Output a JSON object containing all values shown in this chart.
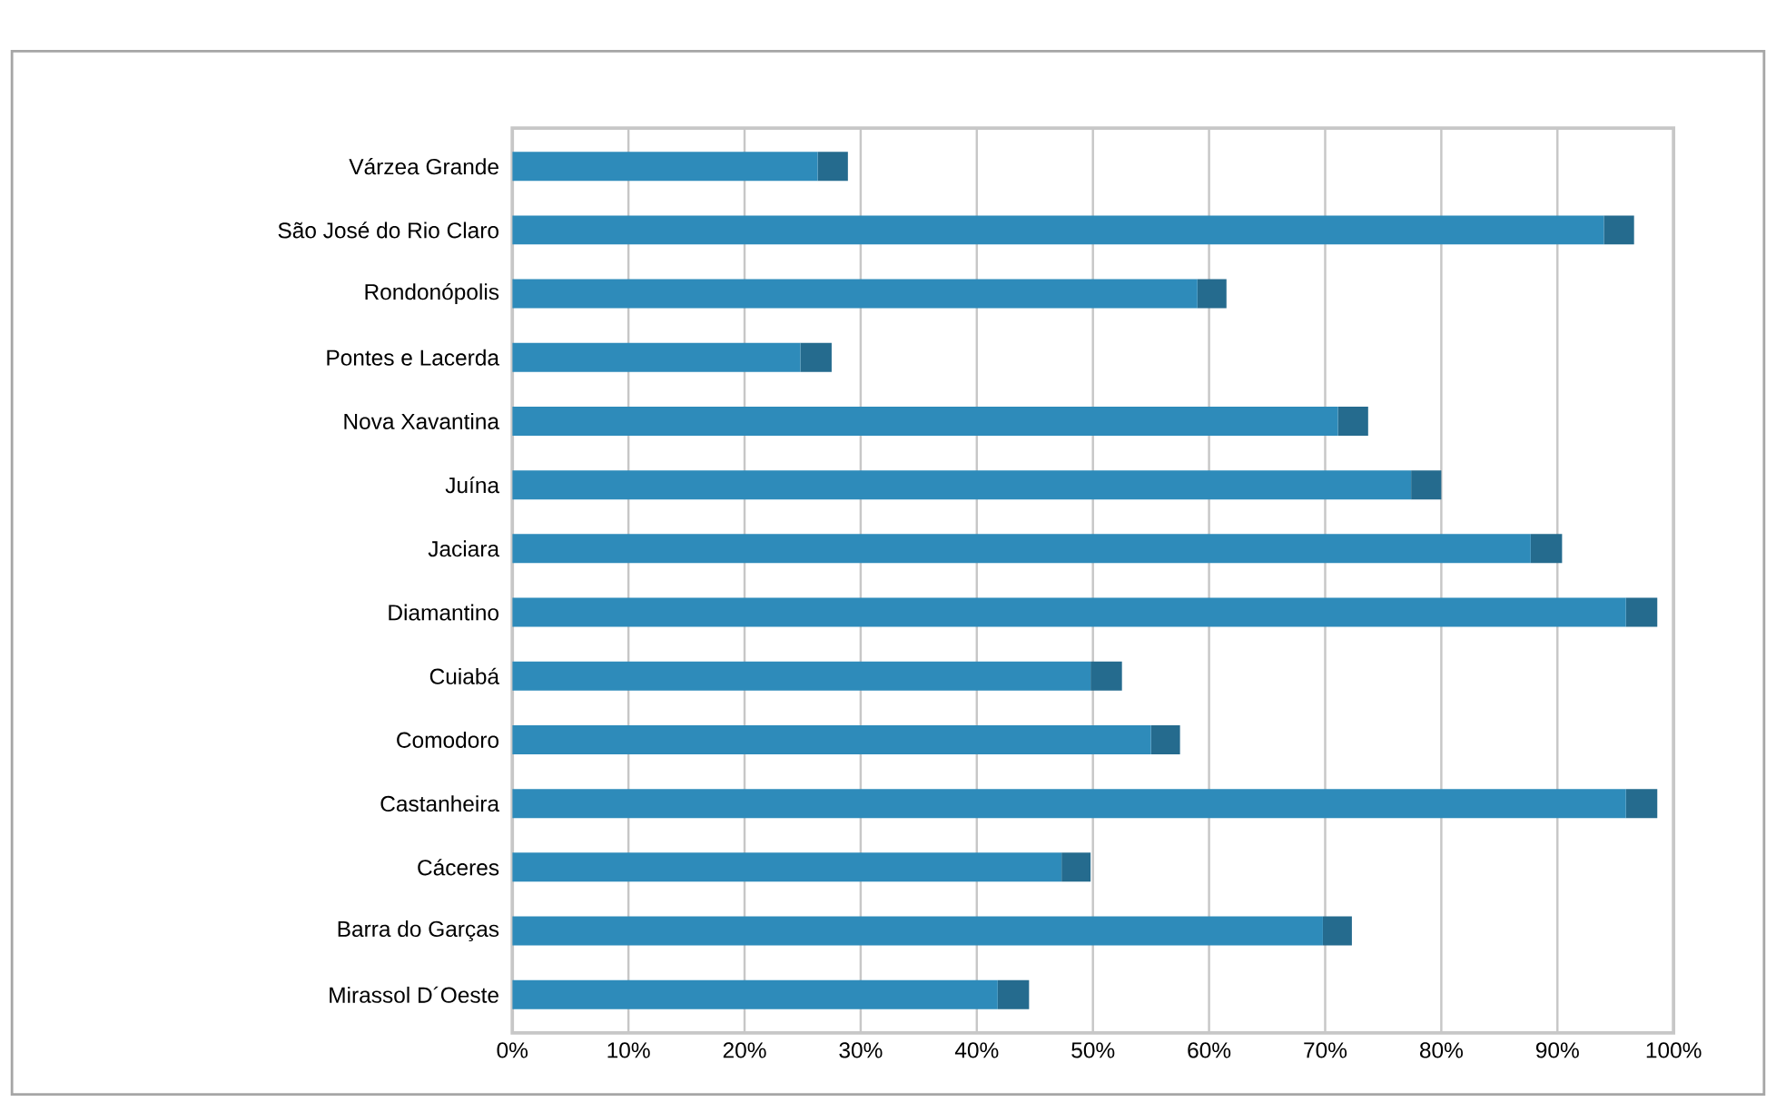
{
  "chart_data": {
    "type": "bar",
    "orientation": "horizontal",
    "stacked": true,
    "categories": [
      "Várzea Grande",
      "São José do Rio Claro",
      "Rondonópolis",
      "Pontes e Lacerda",
      "Nova Xavantina",
      "Juína",
      "Jaciara",
      "Diamantino",
      "Cuiabá",
      "Comodoro",
      "Castanheira",
      "Cáceres",
      "Barra do Garças",
      "Mirassol D´Oeste"
    ],
    "series": [
      {
        "color": "#2e8bba",
        "values": [
          26.3,
          94.0,
          59.0,
          24.8,
          71.1,
          77.4,
          87.7,
          95.9,
          49.8,
          55.0,
          95.9,
          47.3,
          69.8,
          41.8
        ]
      },
      {
        "color": "#256b8e",
        "values": [
          2.6,
          2.6,
          2.5,
          2.7,
          2.6,
          2.6,
          2.7,
          2.7,
          2.7,
          2.5,
          2.7,
          2.5,
          2.5,
          2.7
        ]
      }
    ],
    "xlim": [
      0,
      100
    ],
    "xticks": [
      {
        "value": 0,
        "label": "0%"
      },
      {
        "value": 10,
        "label": "10%"
      },
      {
        "value": 20,
        "label": "20%"
      },
      {
        "value": 30,
        "label": "30%"
      },
      {
        "value": 40,
        "label": "40%"
      },
      {
        "value": 50,
        "label": "50%"
      },
      {
        "value": 60,
        "label": "60%"
      },
      {
        "value": 70,
        "label": "70%"
      },
      {
        "value": 80,
        "label": "80%"
      },
      {
        "value": 90,
        "label": "90%"
      },
      {
        "value": 100,
        "label": "100%"
      }
    ],
    "grid": "x"
  }
}
